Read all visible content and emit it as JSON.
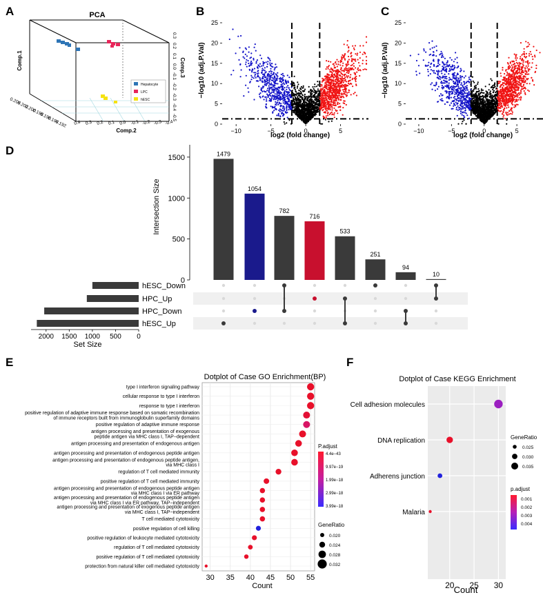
{
  "chart_data": [
    {
      "panel": "A",
      "type": "scatter",
      "title": "PCA",
      "xlabel": "Comp.1",
      "ylabel": "Comp.2",
      "zlabel": "Comp.3",
      "comp2_ticks": [
        "0.4",
        "0.3",
        "0.2",
        "0.1",
        "0.0",
        "-0.1",
        "-0.2",
        "-0.3",
        "-0.4"
      ],
      "comp1_ticks": [
        "0.204",
        "0.202",
        "0.200",
        "0.198",
        "0.196",
        "0.194",
        "0.192"
      ],
      "comp3_ticks": [
        "-0.5",
        "-0.4",
        "-0.3",
        "-0.2",
        "-0.1",
        "0.0",
        "0.1",
        "0.2",
        "0.3"
      ],
      "legend": [
        {
          "label": "Hepatocyte",
          "color": "#2e75b6"
        },
        {
          "label": "LPC",
          "color": "#e8265a"
        },
        {
          "label": "hESC",
          "color": "#f5e211"
        }
      ]
    },
    {
      "panel": "B",
      "type": "scatter",
      "subtype": "volcano",
      "xlabel": "log2 (fold change)",
      "ylabel": "−log10 (adj.P.Val)",
      "xlim": [
        -12,
        9
      ],
      "ylim": [
        0,
        25
      ],
      "xticks": [
        -10,
        -5,
        0,
        5
      ],
      "xtick_labels": [
        "−10",
        "−5",
        "0",
        "5"
      ],
      "yticks": [
        0,
        5,
        10,
        15,
        20,
        25
      ],
      "thresholds": {
        "log2fc": [
          -2,
          2
        ],
        "neg_log10_p": 1.3
      },
      "colors": {
        "down": "#1414c8",
        "up": "#f01414",
        "ns": "#000000"
      }
    },
    {
      "panel": "C",
      "type": "scatter",
      "subtype": "volcano",
      "xlabel": "log2 (fold change)",
      "ylabel": "−log10 (adj.P.Val)",
      "xlim": [
        -12,
        9
      ],
      "ylim": [
        0,
        25
      ],
      "xticks": [
        -10,
        -5,
        0,
        5
      ],
      "xtick_labels": [
        "−10",
        "−5",
        "0",
        "5"
      ],
      "yticks": [
        0,
        5,
        10,
        15,
        20,
        25
      ],
      "thresholds": {
        "log2fc": [
          -2,
          2
        ],
        "neg_log10_p": 1.3
      },
      "colors": {
        "down": "#1414c8",
        "up": "#f01414",
        "ns": "#000000"
      }
    },
    {
      "panel": "D",
      "type": "bar",
      "subtype": "upset",
      "ylabel": "Intersection Size",
      "ylim": [
        0,
        1600
      ],
      "yticks": [
        0,
        500,
        1000,
        1500
      ],
      "values": [
        1479,
        1054,
        782,
        716,
        533,
        251,
        94,
        10
      ],
      "bar_colors": [
        "#3a3a3a",
        "#1a1a8c",
        "#3a3a3a",
        "#c8102e",
        "#3a3a3a",
        "#3a3a3a",
        "#3a3a3a",
        "#3a3a3a"
      ],
      "sets": [
        "hESC_Down",
        "HPC_Up",
        "HPC_Down",
        "hESC_Up"
      ],
      "set_sizes": [
        1000,
        1120,
        2040,
        2200
      ],
      "set_axis_label": "Set Size",
      "set_ticks": [
        2000,
        1500,
        1000,
        500,
        0
      ],
      "intersections": [
        [
          3
        ],
        [
          2
        ],
        [
          0,
          2
        ],
        [
          1
        ],
        [
          1,
          3
        ],
        [
          0
        ],
        [
          2,
          3
        ],
        [
          0,
          1
        ]
      ],
      "dot_colors": [
        "#3a3a3a",
        "#1a1a8c",
        "#3a3a3a",
        "#c8102e",
        "#3a3a3a",
        "#3a3a3a",
        "#3a3a3a",
        "#3a3a3a"
      ]
    },
    {
      "panel": "E",
      "type": "scatter",
      "subtype": "dotplot",
      "title": "Dotplot of Case GO Enrichment(BP)",
      "xlabel": "Count",
      "xlim": [
        28,
        56
      ],
      "xticks": [
        30,
        35,
        40,
        45,
        50,
        55
      ],
      "terms": [
        {
          "label": [
            "type I interferon signaling pathway"
          ],
          "count": 55,
          "gr": 0.032,
          "c": "#e8102a"
        },
        {
          "label": [
            "cellular response to type I interferon"
          ],
          "count": 55,
          "gr": 0.032,
          "c": "#e8102a"
        },
        {
          "label": [
            "response to type I interferon"
          ],
          "count": 55,
          "gr": 0.032,
          "c": "#e8102a"
        },
        {
          "label": [
            "positive regulation of adaptive immune response based on somatic recombination",
            "of immune receptors built from immunoglobulin superfamily domains"
          ],
          "count": 54,
          "gr": 0.031,
          "c": "#e31035"
        },
        {
          "label": [
            "positive regulation of adaptive immune response"
          ],
          "count": 54,
          "gr": 0.031,
          "c": "#d81565"
        },
        {
          "label": [
            "antigen processing and presentation of exogenous",
            "peptide antigen via MHC class I, TAP−dependent"
          ],
          "count": 53,
          "gr": 0.031,
          "c": "#e8102a"
        },
        {
          "label": [
            "antigen processing and presentation of endogenous antigen"
          ],
          "count": 52,
          "gr": 0.03,
          "c": "#e8102a"
        },
        {
          "label": [
            "antigen processing and presentation of endogenous peptide antigen"
          ],
          "count": 51,
          "gr": 0.03,
          "c": "#e8102a"
        },
        {
          "label": [
            "antigen processing and presentation of endogenous peptide antigen,",
            "via MHC class I"
          ],
          "count": 51,
          "gr": 0.03,
          "c": "#e8102a"
        },
        {
          "label": [
            "regulation of T cell mediated immunity"
          ],
          "count": 47,
          "gr": 0.027,
          "c": "#e8102a"
        },
        {
          "label": [
            "positive regulation of T cell mediated immunity"
          ],
          "count": 44,
          "gr": 0.026,
          "c": "#e8102a"
        },
        {
          "label": [
            "antigen processing and presentation of endogenous peptide antigen",
            "via MHC class I via ER pathway"
          ],
          "count": 43,
          "gr": 0.025,
          "c": "#e8102a"
        },
        {
          "label": [
            "antigen processing and presentation of endogenous peptide antigen",
            "via MHC class I via ER pathway, TAP−independent"
          ],
          "count": 43,
          "gr": 0.025,
          "c": "#e8102a"
        },
        {
          "label": [
            "antigen processing and presentation of exogenous peptide antigen",
            "via MHC class I, TAP−independent"
          ],
          "count": 43,
          "gr": 0.025,
          "c": "#e8102a"
        },
        {
          "label": [
            "T cell mediated cytotoxicity"
          ],
          "count": 43,
          "gr": 0.025,
          "c": "#e8102a"
        },
        {
          "label": [
            "positive regulation of cell killing"
          ],
          "count": 42,
          "gr": 0.024,
          "c": "#2222dd"
        },
        {
          "label": [
            "positive regulation of leukocyte mediated cytotoxicity"
          ],
          "count": 41,
          "gr": 0.024,
          "c": "#e8102a"
        },
        {
          "label": [
            "regulation of T cell mediated cytotoxicity"
          ],
          "count": 40,
          "gr": 0.023,
          "c": "#e8102a"
        },
        {
          "label": [
            "positive regulation of T cell mediated cytotoxicity"
          ],
          "count": 39,
          "gr": 0.022,
          "c": "#e8102a"
        },
        {
          "label": [
            "protection from natural killer cell mediated cytotoxicity"
          ],
          "count": 29,
          "gr": 0.017,
          "c": "#e8102a"
        }
      ],
      "color_legend_title": "P.adjust",
      "color_legend_labels": [
        "4.4e−43",
        "9.97e−19",
        "1.99e−18",
        "2.99e−18",
        "3.99e−18"
      ],
      "size_legend_title": "GeneRatio",
      "size_legend_labels": [
        "0.020",
        "0.024",
        "0.028",
        "0.032"
      ]
    },
    {
      "panel": "F",
      "type": "scatter",
      "subtype": "dotplot",
      "title": "Dotplot of Case KEGG Enrichment",
      "xlabel": "Count",
      "xlim": [
        15.5,
        31.5
      ],
      "xticks": [
        20,
        25,
        30
      ],
      "terms": [
        {
          "label": "Cell adhesion molecules",
          "count": 30,
          "gr": 0.037,
          "c": "#9b1fc0"
        },
        {
          "label": "DNA replication",
          "count": 20,
          "gr": 0.032,
          "c": "#e8102a"
        },
        {
          "label": "Adherens junction",
          "count": 18,
          "gr": 0.028,
          "c": "#2222dd"
        },
        {
          "label": "Malaria",
          "count": 16,
          "gr": 0.024,
          "c": "#e8102a"
        }
      ],
      "size_legend_title": "GeneRatio",
      "size_legend_labels": [
        "0.025",
        "0.030",
        "0.035"
      ],
      "color_legend_title": "p.adjust",
      "color_legend_labels": [
        "0.001",
        "0.002",
        "0.003",
        "0.004"
      ]
    }
  ]
}
